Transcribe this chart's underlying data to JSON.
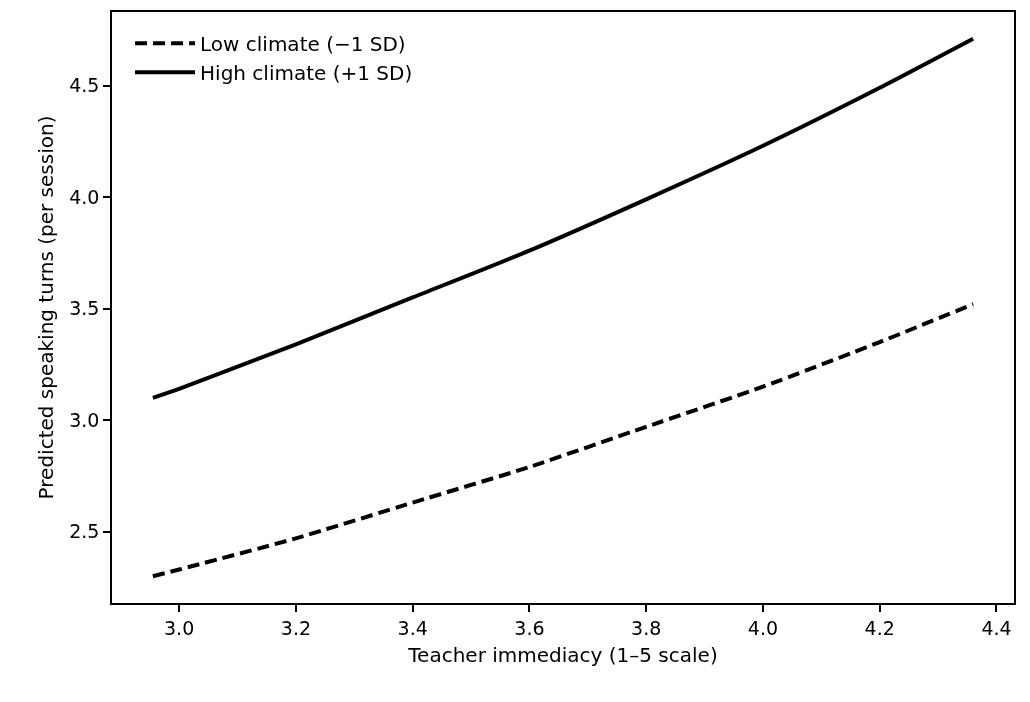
{
  "chart_data": {
    "type": "line",
    "xlabel": "Teacher immediacy (1–5 scale)",
    "ylabel": "Predicted speaking turns (per session)",
    "x": [
      2.955,
      3.0,
      3.2,
      3.4,
      3.6,
      3.8,
      4.0,
      4.2,
      4.36
    ],
    "series": [
      {
        "name": "Low climate (−1 SD)",
        "color": "#000000",
        "line_style": "dashed",
        "values": [
          2.3,
          2.33,
          2.47,
          2.63,
          2.79,
          2.97,
          3.15,
          3.35,
          3.52
        ]
      },
      {
        "name": "High climate (+1 SD)",
        "color": "#000000",
        "line_style": "solid",
        "values": [
          3.1,
          3.14,
          3.34,
          3.55,
          3.76,
          3.99,
          4.23,
          4.49,
          4.71
        ]
      }
    ],
    "xlim": [
      2.885,
      4.43
    ],
    "xticks": [
      {
        "value": 3,
        "label": "3.0"
      },
      3.2,
      3.4,
      3.6,
      3.8,
      {
        "value": 4,
        "label": "4.0"
      },
      4.2,
      4.4
    ],
    "ylim": [
      2.18,
      4.83
    ],
    "yticks": [
      2.5,
      {
        "value": 3,
        "label": "3.0"
      },
      3.5,
      {
        "value": 4,
        "label": "4.0"
      },
      4.5
    ],
    "grid": false,
    "legend": "top left",
    "marker": "none"
  }
}
